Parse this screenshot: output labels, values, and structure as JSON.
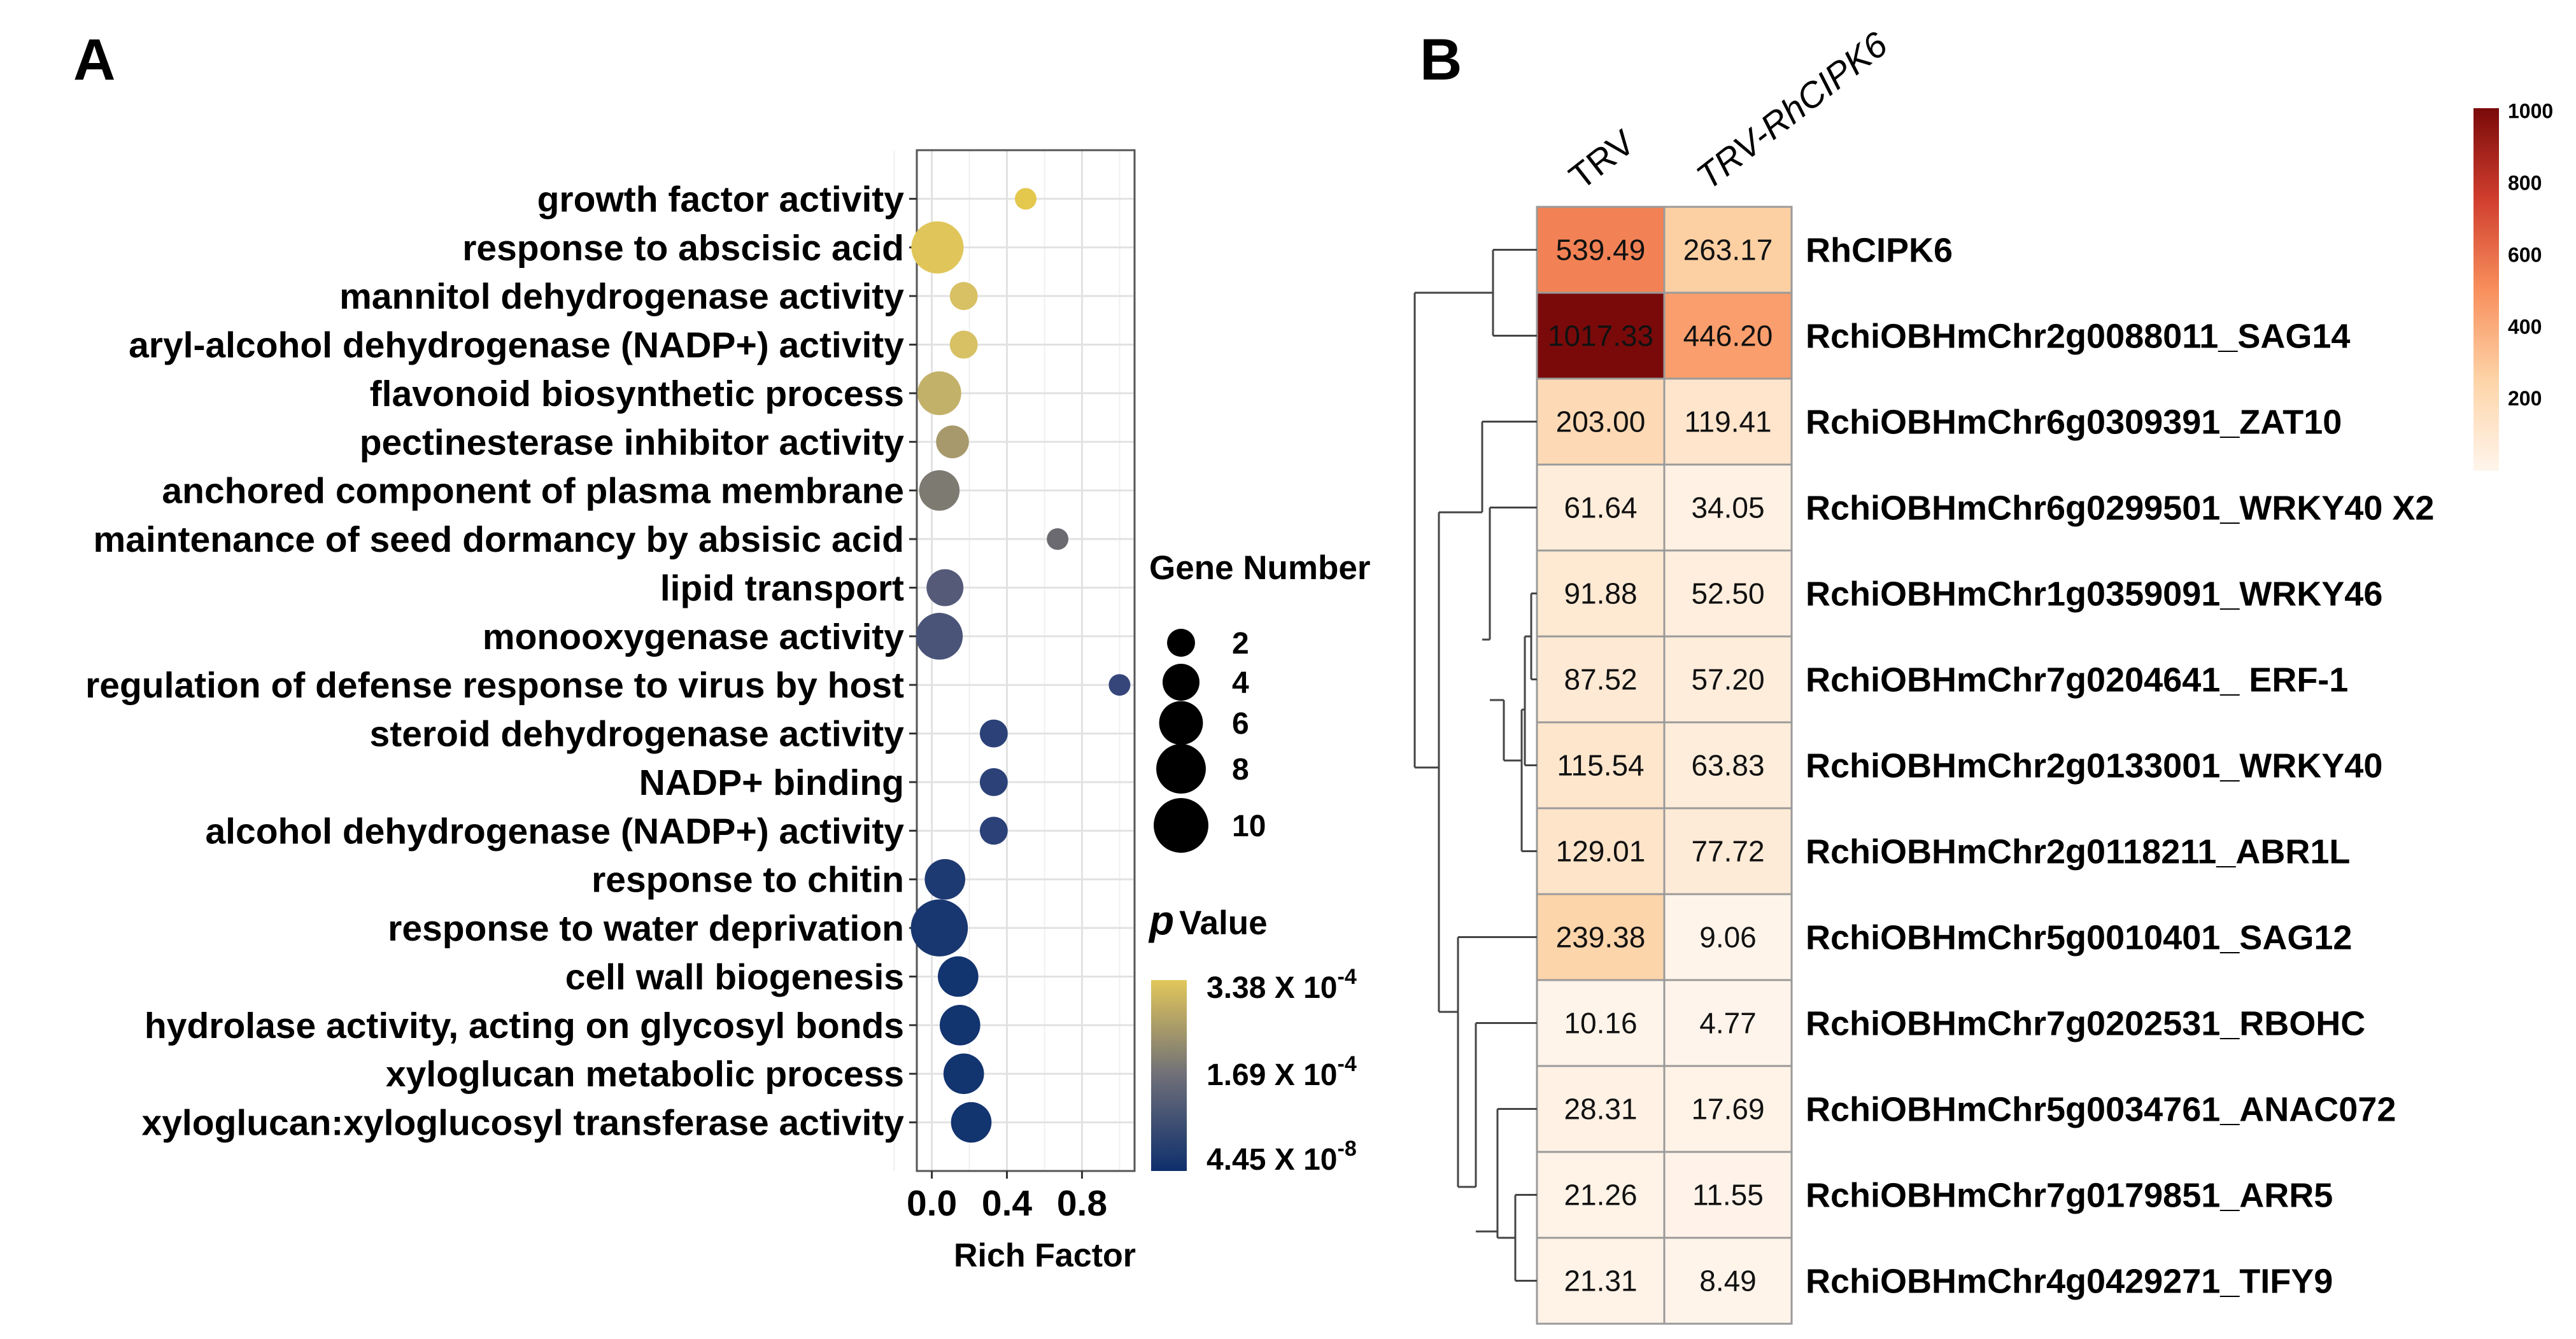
{
  "panels": {
    "a_letter": "A",
    "b_letter": "B"
  },
  "chart_data": [
    {
      "type": "scatter",
      "subtype": "bubble",
      "panel": "A",
      "categories": [
        "growth factor activity",
        "response to abscisic acid",
        "mannitol dehydrogenase activity",
        "aryl-alcohol dehydrogenase (NADP+) activity",
        "flavonoid biosynthetic process",
        "pectinesterase inhibitor activity",
        "anchored component of plasma membrane",
        "maintenance of seed dormancy by absisic acid",
        "lipid transport",
        "monooxygenase activity",
        "regulation of defense response to virus by host",
        "steroid dehydrogenase activity",
        "NADP+ binding",
        "alcohol dehydrogenase (NADP+) activity",
        "response to chitin",
        "response to water deprivation",
        "cell wall biogenesis",
        "hydrolase activity, acting on glycosyl bonds",
        "xyloglucan metabolic process",
        "xyloglucan:xyloglucosyl transferase activity"
      ],
      "rich_factor": [
        0.5,
        0.03,
        0.17,
        0.17,
        0.04,
        0.11,
        0.04,
        0.67,
        0.07,
        0.04,
        1.0,
        0.33,
        0.33,
        0.33,
        0.07,
        0.04,
        0.14,
        0.15,
        0.17,
        0.21
      ],
      "gene_number": [
        1,
        9,
        2,
        2,
        6,
        3,
        5,
        1,
        4,
        7,
        1,
        2,
        2,
        2,
        5,
        11,
        5,
        5,
        5,
        5
      ],
      "p_value_color": [
        "#e4c84e",
        "#e0c65a",
        "#d7c164",
        "#d7c164",
        "#c2b168",
        "#a7996c",
        "#7d7a72",
        "#6a6a70",
        "#545a78",
        "#4a5478",
        "#36467a",
        "#2b4178",
        "#2b4178",
        "#2b4178",
        "#1e3a72",
        "#183770",
        "#12346f",
        "#12346f",
        "#12346f",
        "#12346f"
      ],
      "xlabel": "Rich Factor",
      "ylabel": "",
      "xlim": [
        -0.08,
        1.08
      ],
      "x_ticks": [
        "0.0",
        "0.4",
        "0.8"
      ],
      "legend_size": {
        "title": "Gene Number",
        "entries": [
          "2",
          "4",
          "6",
          "8",
          "10"
        ]
      },
      "legend_color": {
        "title_p": "p",
        "title_rest": "Value",
        "high_base": "3.38 X 10",
        "high_exp": "-4",
        "mid_base": "1.69 X 10",
        "mid_exp": "-4",
        "low_base": "4.45 X 10",
        "low_exp": "-8",
        "colors": [
          "#e2c75a",
          "#6e6f78",
          "#0e2f6c"
        ]
      }
    },
    {
      "type": "heatmap",
      "panel": "B",
      "columns": [
        "TRV",
        "TRV-RhCIPK6"
      ],
      "rows": [
        "RhCIPK6",
        "RchiOBHmChr2g0088011_SAG14",
        "RchiOBHmChr6g0309391_ZAT10",
        "RchiOBHmChr6g0299501_WRKY40 X2",
        "RchiOBHmChr1g0359091_WRKY46",
        "RchiOBHmChr7g0204641_ ERF-1",
        "RchiOBHmChr2g0133001_WRKY40",
        "RchiOBHmChr2g0118211_ABR1L",
        "RchiOBHmChr5g0010401_SAG12",
        "RchiOBHmChr7g0202531_RBOHC",
        "RchiOBHmChr5g0034761_ANAC072",
        "RchiOBHmChr7g0179851_ARR5",
        "RchiOBHmChr4g0429271_TIFY9"
      ],
      "values": [
        [
          539.49,
          263.17
        ],
        [
          1017.33,
          446.2
        ],
        [
          203.0,
          119.41
        ],
        [
          61.64,
          34.05
        ],
        [
          91.88,
          52.5
        ],
        [
          87.52,
          57.2
        ],
        [
          115.54,
          63.83
        ],
        [
          129.01,
          77.72
        ],
        [
          239.38,
          9.06
        ],
        [
          10.16,
          4.77
        ],
        [
          28.31,
          17.69
        ],
        [
          21.26,
          11.55
        ],
        [
          21.31,
          8.49
        ]
      ],
      "value_labels": [
        [
          "539.49",
          "263.17"
        ],
        [
          "1017.33",
          "446.20"
        ],
        [
          "203.00",
          "119.41"
        ],
        [
          "61.64",
          "34.05"
        ],
        [
          "91.88",
          "52.50"
        ],
        [
          "87.52",
          "57.20"
        ],
        [
          "115.54",
          "63.83"
        ],
        [
          "129.01",
          "77.72"
        ],
        [
          "239.38",
          "9.06"
        ],
        [
          "10.16",
          "4.77"
        ],
        [
          "28.31",
          "17.69"
        ],
        [
          "21.26",
          "11.55"
        ],
        [
          "21.31",
          "8.49"
        ]
      ],
      "colorbar": {
        "min": 0,
        "max": 1000,
        "ticks": [
          "200",
          "400",
          "600",
          "800",
          "1000"
        ],
        "colors": [
          "#fff5ec",
          "#fdd4a8",
          "#f88f5c",
          "#d03e2e",
          "#7a0a0a"
        ]
      }
    }
  ]
}
